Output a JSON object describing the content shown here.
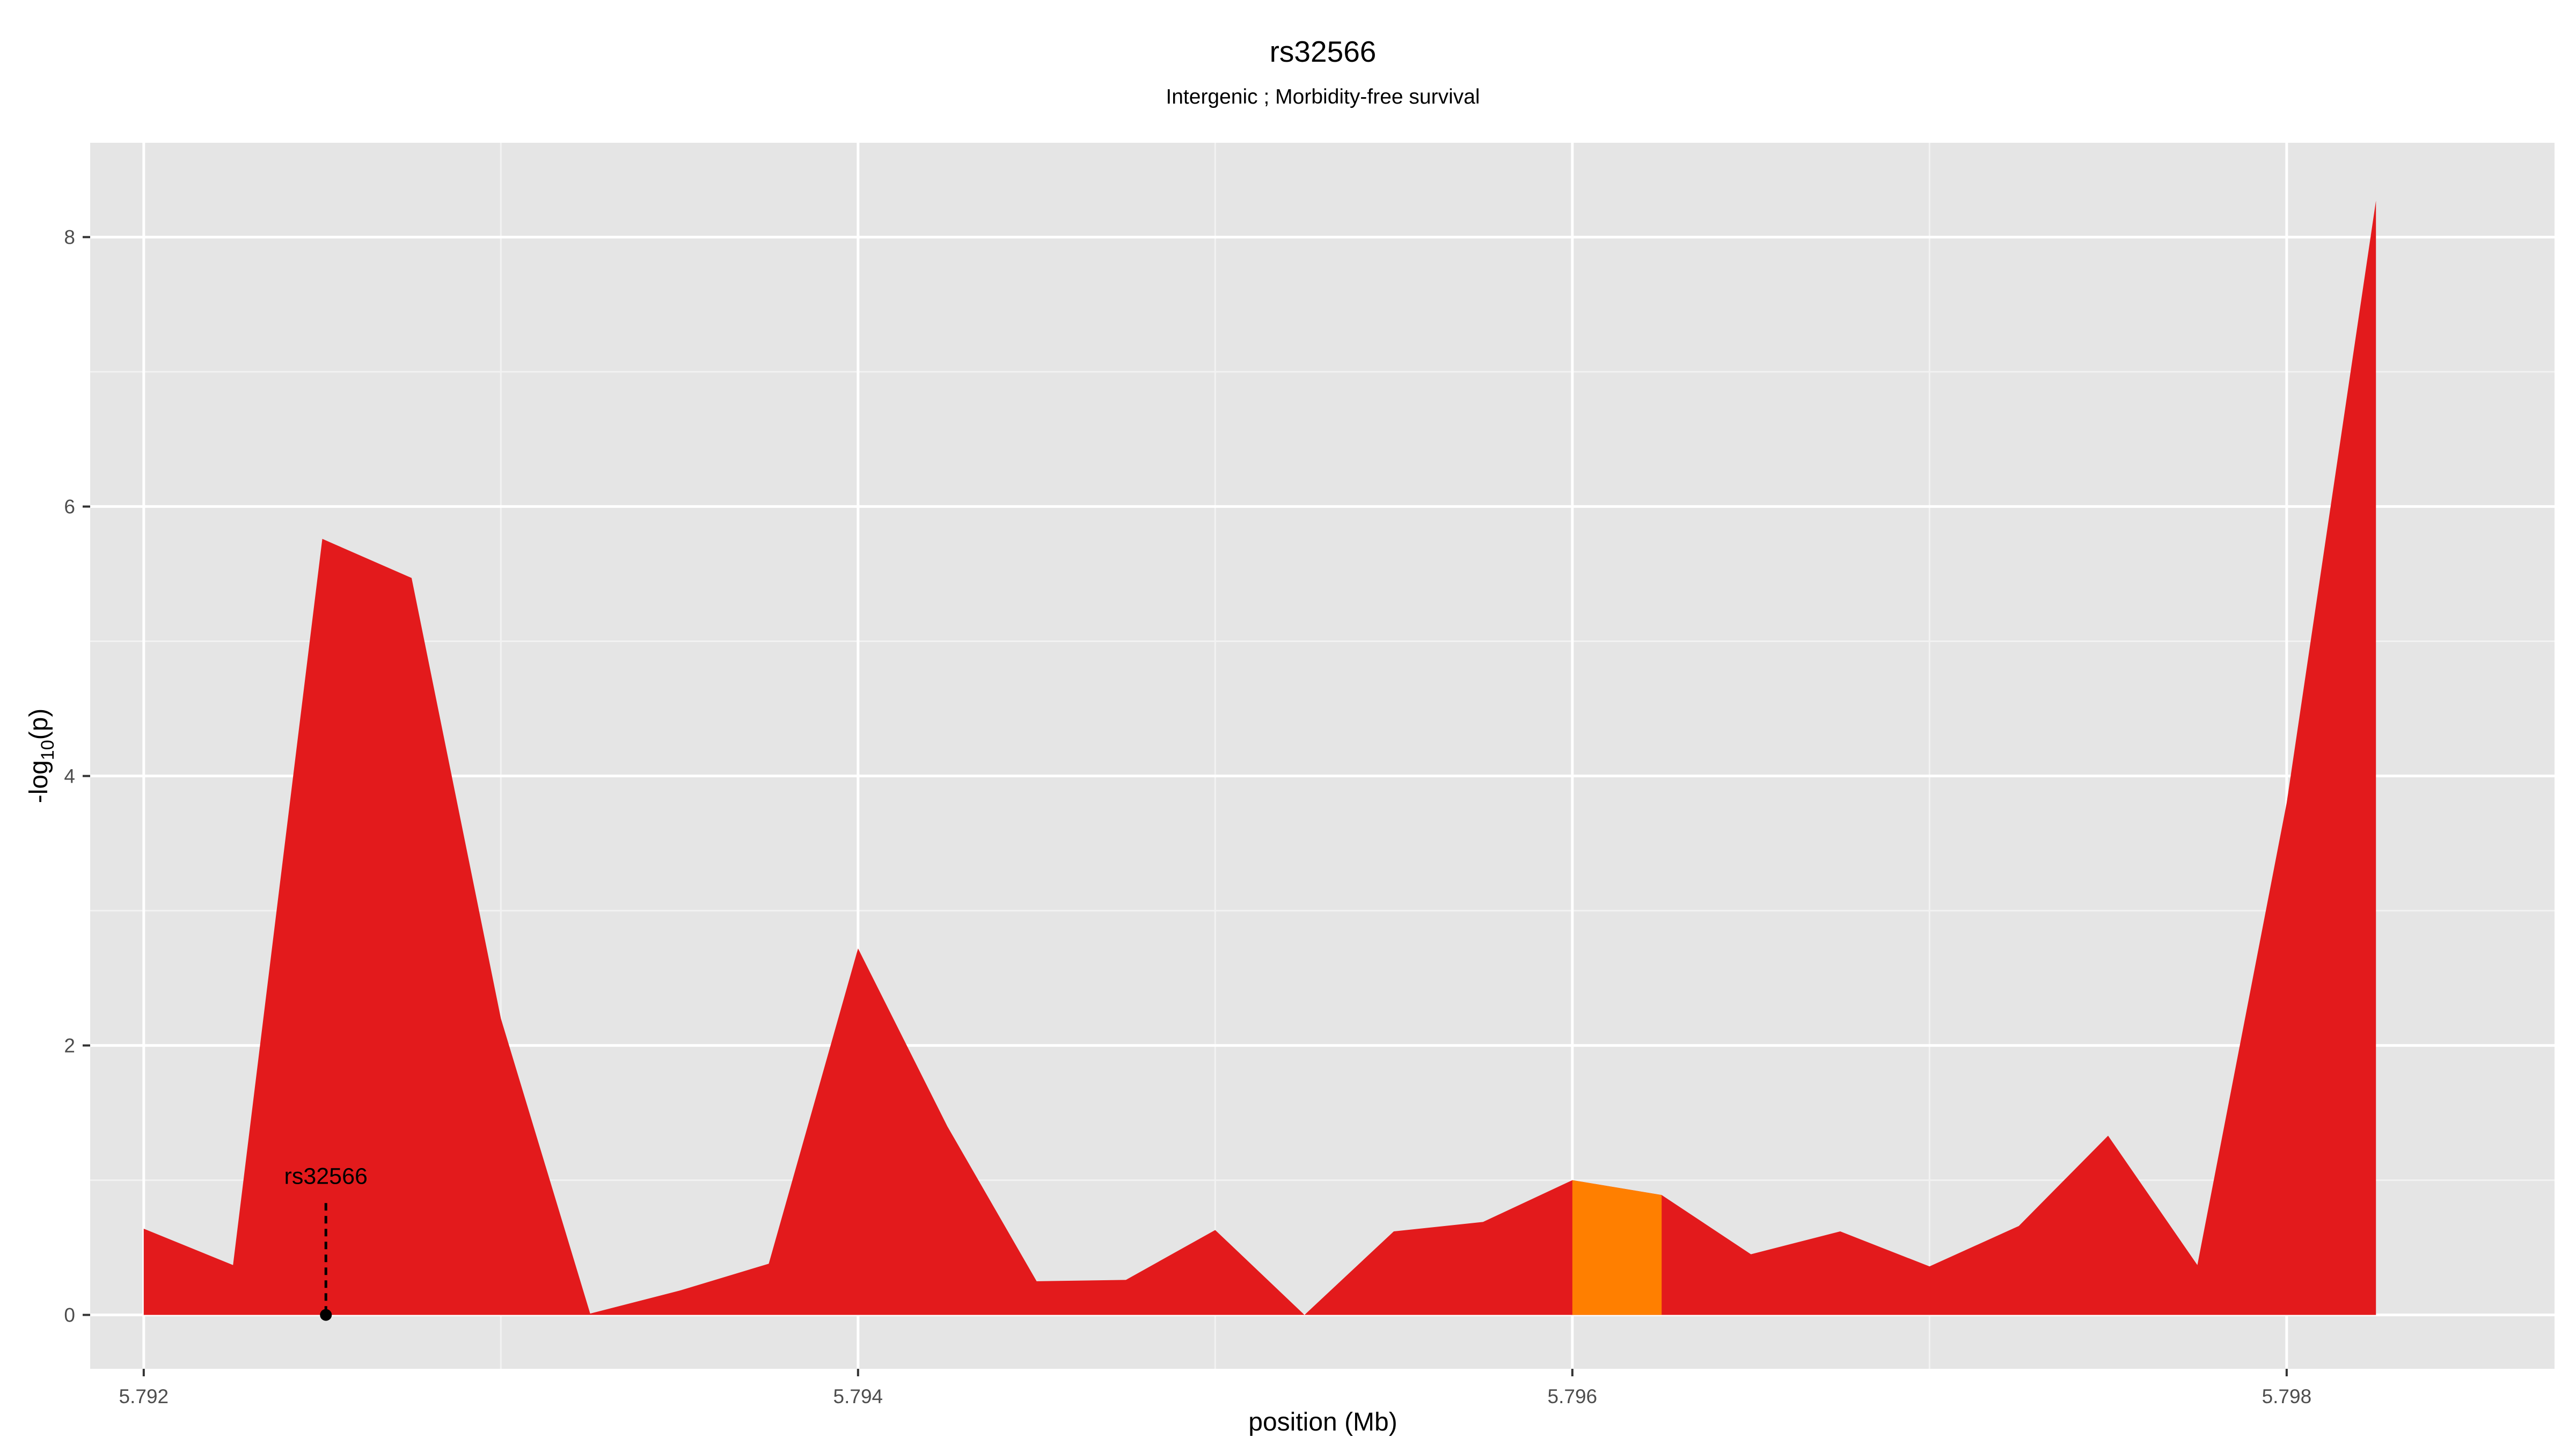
{
  "chart_data": {
    "type": "area",
    "title": "rs32566",
    "subtitle": "Intergenic ; Morbidity-free survival",
    "xlabel": "position (Mb)",
    "ylabel": "-log10(p)",
    "ylabel_parts": {
      "prefix": "-log",
      "subscript": "10",
      "suffix": "(p)"
    },
    "xlim": [
      5.79185,
      5.79875
    ],
    "ylim": [
      -0.4,
      8.7
    ],
    "x_ticks": [
      {
        "value": 5.792,
        "label": "5.792"
      },
      {
        "value": 5.794,
        "label": "5.794"
      },
      {
        "value": 5.796,
        "label": "5.796"
      },
      {
        "value": 5.798,
        "label": "5.798"
      }
    ],
    "x_minor_ticks": [
      5.793,
      5.795,
      5.797
    ],
    "y_ticks": [
      {
        "value": 0,
        "label": "0"
      },
      {
        "value": 2,
        "label": "2"
      },
      {
        "value": 4,
        "label": "4"
      },
      {
        "value": 6,
        "label": "6"
      },
      {
        "value": 8,
        "label": "8"
      }
    ],
    "y_minor_ticks": [
      1,
      3,
      5,
      7
    ],
    "grid": true,
    "series": [
      {
        "color": "#e31a1c",
        "x": [
          5.792,
          5.79225,
          5.7925,
          5.79275,
          5.793,
          5.79325,
          5.7935,
          5.79375,
          5.794,
          5.79425,
          5.7945,
          5.79475,
          5.795,
          5.79525,
          5.7955,
          5.79575,
          5.796,
          5.79625,
          5.7965,
          5.79675,
          5.797,
          5.79725,
          5.7975,
          5.79775,
          5.798,
          5.79825
        ],
        "y": [
          0.64,
          0.37,
          5.76,
          5.47,
          2.2,
          0.01,
          0.18,
          0.38,
          2.72,
          1.4,
          0.25,
          0.26,
          0.63,
          0.0,
          0.62,
          0.69,
          1.0,
          0.89,
          0.45,
          0.62,
          0.36,
          0.66,
          1.33,
          0.37,
          3.8,
          8.27
        ]
      },
      {
        "color": "#ff7f00",
        "x": [
          5.796,
          5.79625
        ],
        "y": [
          1.0,
          0.89
        ]
      }
    ],
    "annotations": [
      {
        "label": "rs32566",
        "x": 5.79251,
        "y": 0.0,
        "line_top": 0.83
      }
    ],
    "colors": {
      "panel_background": "#e5e5e5",
      "grid_major": "#ffffff",
      "grid_minor": "#f2f2f2",
      "tick_text": "#4d4d4d",
      "tick_mark": "#333333"
    }
  }
}
